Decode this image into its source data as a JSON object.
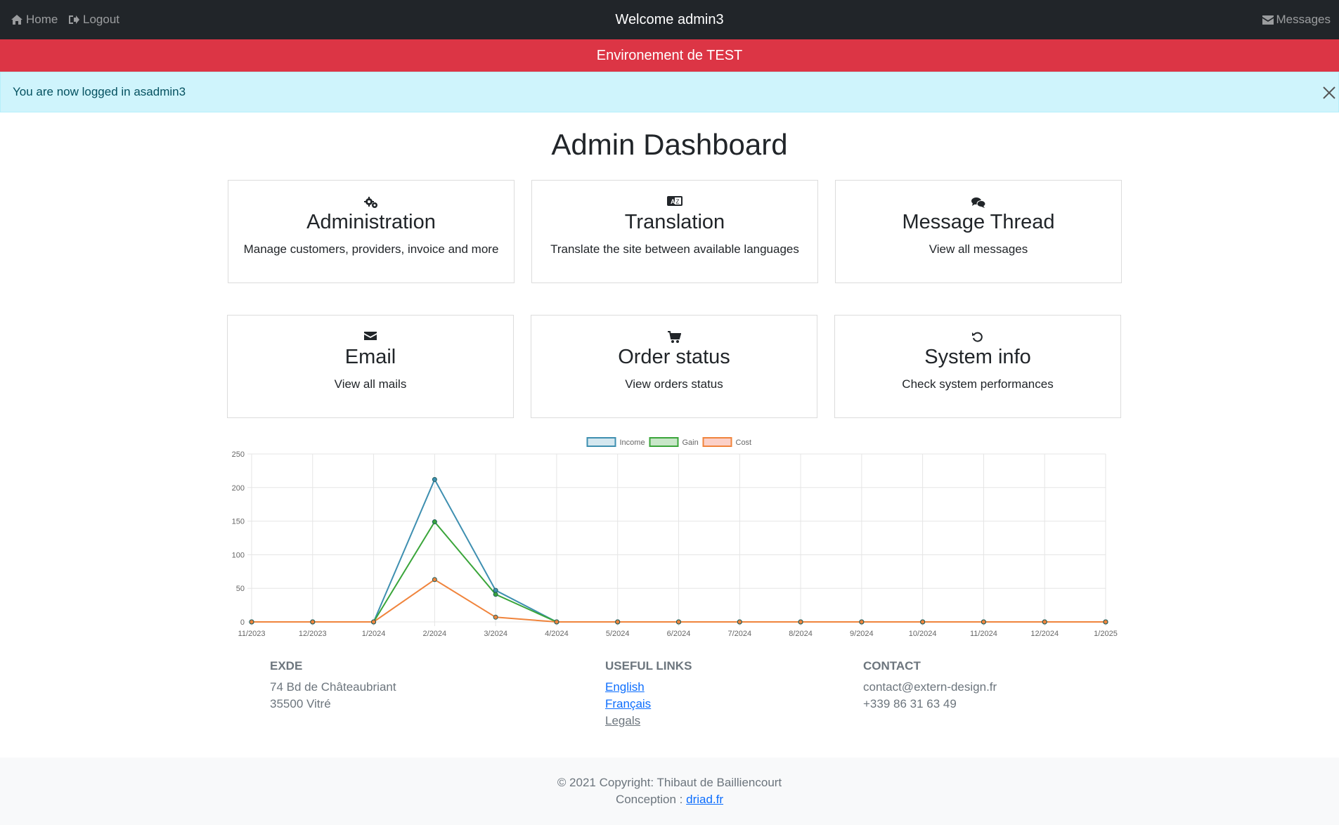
{
  "nav": {
    "home_label": "Home",
    "logout_label": "Logout",
    "welcome": "Welcome admin3",
    "messages_label": "Messages"
  },
  "env_banner": "Environement de TEST",
  "alert": {
    "message": "You are now logged in asadmin3"
  },
  "page_title": "Admin Dashboard",
  "cards": [
    {
      "icon": "gears-icon",
      "title": "Administration",
      "text": "Manage customers, providers, invoice and more"
    },
    {
      "icon": "translate-icon",
      "title": "Translation",
      "text": "Translate the site between available languages"
    },
    {
      "icon": "comments-icon",
      "title": "Message Thread",
      "text": "View all messages"
    },
    {
      "icon": "envelope-icon",
      "title": "Email",
      "text": "View all mails"
    },
    {
      "icon": "cart-icon",
      "title": "Order status",
      "text": "View orders status"
    },
    {
      "icon": "history-icon",
      "title": "System info",
      "text": "Check system performances"
    }
  ],
  "chart_data": {
    "type": "line",
    "categories": [
      "11/2023",
      "12/2023",
      "1/2024",
      "2/2024",
      "3/2024",
      "4/2024",
      "5/2024",
      "6/2024",
      "7/2024",
      "8/2024",
      "9/2024",
      "10/2024",
      "11/2024",
      "12/2024",
      "1/2025"
    ],
    "series": [
      {
        "name": "Income",
        "color": "#3e8fb0",
        "fill": "#d4e7ef",
        "values": [
          0,
          0,
          0,
          212,
          47,
          0,
          0,
          0,
          0,
          0,
          0,
          0,
          0,
          0,
          0
        ]
      },
      {
        "name": "Gain",
        "color": "#3aa53a",
        "fill": "#c8e6c8",
        "values": [
          0,
          0,
          0,
          149,
          41,
          0,
          0,
          0,
          0,
          0,
          0,
          0,
          0,
          0,
          0
        ]
      },
      {
        "name": "Cost",
        "color": "#f0843c",
        "fill": "#fbd0c8",
        "values": [
          0,
          0,
          0,
          63,
          7,
          0,
          0,
          0,
          0,
          0,
          0,
          0,
          0,
          0,
          0
        ]
      }
    ],
    "ylim": [
      0,
      250
    ],
    "yticks": [
      0,
      50,
      100,
      150,
      200,
      250
    ],
    "grid": true,
    "legend_position": "top-center"
  },
  "footer": {
    "company": {
      "title": "EXDE",
      "address1": "74 Bd de Châteaubriant",
      "address2": "35500 Vitré"
    },
    "links": {
      "title": "USEFUL LINKS",
      "items": [
        "English",
        "Français",
        "Legals"
      ]
    },
    "contact": {
      "title": "CONTACT",
      "email": "contact@extern-design.fr",
      "phone": "+339 86 31 63 49"
    }
  },
  "copyright": "© 2021 Copyright: Thibaut de Bailliencourt",
  "conception_label": "Conception :",
  "conception_link": "driad.fr"
}
